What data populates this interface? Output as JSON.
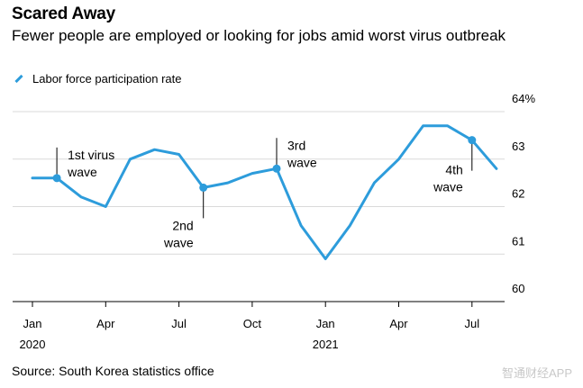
{
  "title": "Scared Away",
  "subtitle": "Fewer people are employed or looking for jobs amid worst virus outbreak",
  "legend": {
    "label": "Labor force participation rate",
    "color": "#2d9cdb"
  },
  "source": "Source: South Korea statistics office",
  "watermark": "智通财经APP",
  "chart_data": {
    "type": "line",
    "title": "Scared Away",
    "subtitle": "Fewer people are employed or looking for jobs amid worst virus outbreak",
    "xlabel": "",
    "ylabel": "",
    "ylim": [
      60,
      64
    ],
    "y_ticks": [
      60,
      61,
      62,
      63,
      64
    ],
    "y_tick_labels": [
      "60",
      "61",
      "62",
      "63",
      "64%"
    ],
    "x_ticks": [
      {
        "label": "Jan",
        "year": "2020",
        "index": 0
      },
      {
        "label": "Apr",
        "year": "",
        "index": 3
      },
      {
        "label": "Jul",
        "year": "",
        "index": 6
      },
      {
        "label": "Oct",
        "year": "",
        "index": 9
      },
      {
        "label": "Jan",
        "year": "2021",
        "index": 12
      },
      {
        "label": "Apr",
        "year": "",
        "index": 15
      },
      {
        "label": "Jul",
        "year": "",
        "index": 18
      }
    ],
    "categories": [
      "Jan 2020",
      "Feb 2020",
      "Mar 2020",
      "Apr 2020",
      "May 2020",
      "Jun 2020",
      "Jul 2020",
      "Aug 2020",
      "Sep 2020",
      "Oct 2020",
      "Nov 2020",
      "Dec 2020",
      "Jan 2021",
      "Feb 2021",
      "Mar 2021",
      "Apr 2021",
      "May 2021",
      "Jun 2021",
      "Jul 2021",
      "Aug 2021"
    ],
    "series": [
      {
        "name": "Labor force participation rate",
        "color": "#2d9cdb",
        "values": [
          62.6,
          62.6,
          62.2,
          62.0,
          63.0,
          63.2,
          63.1,
          62.4,
          62.5,
          62.7,
          62.8,
          61.6,
          60.9,
          61.6,
          62.5,
          63.0,
          63.7,
          63.7,
          63.4,
          62.8
        ]
      }
    ],
    "annotations": [
      {
        "index": 1,
        "label_lines": [
          "1st virus",
          "wave"
        ],
        "position": "above"
      },
      {
        "index": 7,
        "label_lines": [
          "2nd",
          "wave"
        ],
        "position": "below"
      },
      {
        "index": 10,
        "label_lines": [
          "3rd",
          "wave"
        ],
        "position": "above"
      },
      {
        "index": 18,
        "label_lines": [
          "4th",
          "wave"
        ],
        "position": "below"
      }
    ],
    "grid": true,
    "legend_position": "top-left"
  }
}
